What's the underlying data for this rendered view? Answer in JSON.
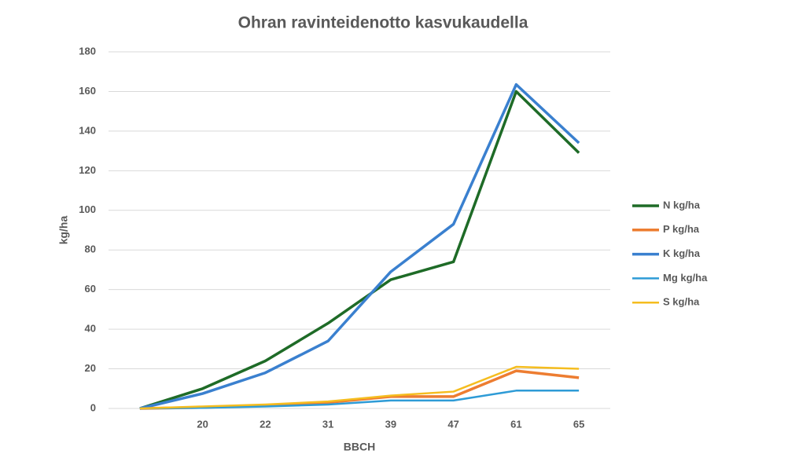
{
  "chart_data": {
    "type": "line",
    "title": "Ohran ravinteidenotto kasvukaudella",
    "x_label": "BBCH",
    "y_label": "kg/ha",
    "categories": [
      null,
      "20",
      "22",
      "31",
      "39",
      "47",
      "61",
      "65"
    ],
    "ylim": [
      0,
      180
    ],
    "yticks": [
      0,
      20,
      40,
      60,
      80,
      100,
      120,
      140,
      160,
      180
    ],
    "grid": true,
    "legend": "right",
    "series": [
      {
        "name": "N kg/ha",
        "color": "#1e6b27",
        "values": [
          0,
          10,
          24,
          43,
          65,
          74,
          160,
          129
        ]
      },
      {
        "name": "P kg/ha",
        "color": "#ed7d31",
        "values": [
          0,
          0.5,
          1.5,
          3,
          6,
          6,
          19,
          15.5
        ]
      },
      {
        "name": "K kg/ha",
        "color": "#3a80cf",
        "values": [
          0,
          7.5,
          18,
          34,
          69,
          93,
          163.5,
          134
        ]
      },
      {
        "name": "Mg kg/ha",
        "color": "#2e9bd6",
        "values": [
          0,
          0.3,
          1,
          2,
          4,
          4,
          9,
          9
        ]
      },
      {
        "name": "S kg/ha",
        "color": "#f5bd1f",
        "values": [
          0,
          1,
          2,
          3.5,
          6.5,
          8.5,
          21,
          20
        ]
      }
    ]
  }
}
